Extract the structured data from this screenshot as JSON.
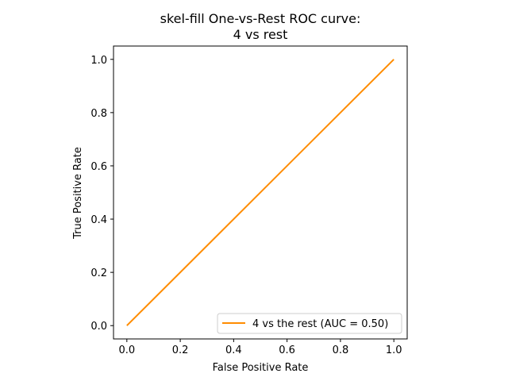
{
  "chart_data": {
    "type": "line",
    "title_lines": [
      "skel-fill One-vs-Rest ROC curve:",
      "4 vs rest"
    ],
    "xlabel": "False Positive Rate",
    "ylabel": "True Positive Rate",
    "xlim": [
      -0.05,
      1.05
    ],
    "ylim": [
      -0.05,
      1.05
    ],
    "xticks": [
      "0.0",
      "0.2",
      "0.4",
      "0.6",
      "0.8",
      "1.0"
    ],
    "yticks": [
      "0.0",
      "0.2",
      "0.4",
      "0.6",
      "0.8",
      "1.0"
    ],
    "grid": false,
    "legend_position": "lower-right",
    "series": [
      {
        "name": "4 vs the rest (AUC = 0.50)",
        "color": "#ff8c00",
        "x": [
          0.0,
          1.0
        ],
        "y": [
          0.0,
          1.0
        ]
      }
    ]
  }
}
